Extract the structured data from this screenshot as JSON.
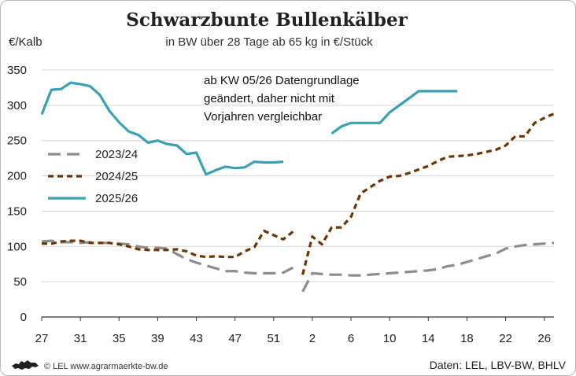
{
  "chart_data": {
    "type": "line",
    "title": "Schwarzbunte Bullenkälber",
    "subtitle": "in BW über 28 Tage ab 65 kg in €/Stück",
    "ylabel": "€/Kalb",
    "ylim": [
      0,
      350
    ],
    "yticks": [
      0,
      50,
      100,
      150,
      200,
      250,
      300,
      350
    ],
    "xticks": [
      "27",
      "31",
      "35",
      "39",
      "43",
      "47",
      "51",
      "2",
      "6",
      "10",
      "14",
      "18",
      "22",
      "26"
    ],
    "grid": "horizontal",
    "legend_position": "left-middle",
    "note": [
      "ab KW 05/26 Datengrundlage",
      "geändert, daher nicht mit",
      "Vorjahren vergleichbar"
    ],
    "series": [
      {
        "name": "2023/24",
        "color": "#8c8c8c",
        "dash": "long-dash",
        "segments": [
          [
            [
              27,
              107
            ],
            [
              28,
              108
            ],
            [
              29,
              106
            ],
            [
              30,
              106
            ],
            [
              31,
              105
            ],
            [
              32,
              106
            ],
            [
              33,
              105
            ],
            [
              34,
              105
            ],
            [
              35,
              104
            ],
            [
              36,
              103
            ],
            [
              37,
              100
            ],
            [
              38,
              98
            ],
            [
              39,
              98
            ],
            [
              40,
              97
            ],
            [
              41,
              89
            ],
            [
              42,
              82
            ],
            [
              43,
              77
            ],
            [
              44,
              73
            ],
            [
              45,
              69
            ],
            [
              46,
              65
            ],
            [
              47,
              65
            ],
            [
              48,
              63
            ],
            [
              49,
              62
            ],
            [
              50,
              62
            ],
            [
              51,
              62
            ],
            [
              52,
              63
            ],
            [
              53,
              70
            ]
          ],
          [
            [
              54,
              36
            ],
            [
              55,
              62
            ],
            [
              56,
              61
            ],
            [
              57,
              60
            ],
            [
              58,
              60
            ],
            [
              59,
              59
            ],
            [
              60,
              59
            ],
            [
              61,
              60
            ],
            [
              62,
              61
            ],
            [
              63,
              62
            ],
            [
              64,
              63
            ],
            [
              65,
              64
            ],
            [
              66,
              65
            ],
            [
              67,
              66
            ],
            [
              68,
              68
            ],
            [
              69,
              72
            ],
            [
              70,
              74
            ],
            [
              71,
              78
            ],
            [
              72,
              82
            ],
            [
              73,
              86
            ],
            [
              74,
              90
            ],
            [
              75,
              97
            ],
            [
              76,
              100
            ],
            [
              77,
              102
            ],
            [
              78,
              103
            ],
            [
              79,
              104
            ],
            [
              80,
              105
            ]
          ]
        ]
      },
      {
        "name": "2024/25",
        "color": "#6b3500",
        "dash": "short-dash",
        "segments": [
          [
            [
              27,
              104
            ],
            [
              28,
              104
            ],
            [
              29,
              107
            ],
            [
              30,
              108
            ],
            [
              31,
              108
            ],
            [
              32,
              105
            ],
            [
              33,
              105
            ],
            [
              34,
              105
            ],
            [
              35,
              103
            ],
            [
              36,
              100
            ],
            [
              37,
              96
            ],
            [
              38,
              95
            ],
            [
              39,
              95
            ],
            [
              40,
              95
            ],
            [
              41,
              96
            ],
            [
              42,
              93
            ],
            [
              43,
              87
            ],
            [
              44,
              85
            ],
            [
              45,
              86
            ],
            [
              46,
              85
            ],
            [
              47,
              85
            ],
            [
              48,
              93
            ],
            [
              49,
              99
            ],
            [
              50,
              122
            ],
            [
              51,
              116
            ],
            [
              52,
              110
            ],
            [
              53,
              121
            ]
          ],
          [
            [
              54,
              60
            ],
            [
              55,
              114
            ],
            [
              56,
              103
            ],
            [
              57,
              127
            ],
            [
              58,
              127
            ],
            [
              59,
              142
            ],
            [
              60,
              175
            ],
            [
              61,
              184
            ],
            [
              62,
              193
            ],
            [
              63,
              199
            ],
            [
              64,
              200
            ],
            [
              65,
              204
            ],
            [
              66,
              209
            ],
            [
              67,
              214
            ],
            [
              68,
              221
            ],
            [
              69,
              227
            ],
            [
              70,
              228
            ],
            [
              71,
              229
            ],
            [
              72,
              231
            ],
            [
              73,
              234
            ],
            [
              74,
              237
            ],
            [
              75,
              243
            ],
            [
              76,
              256
            ],
            [
              77,
              256
            ],
            [
              78,
              275
            ],
            [
              79,
              282
            ],
            [
              80,
              288
            ]
          ]
        ]
      },
      {
        "name": "2025/26",
        "color": "#3aa0b4",
        "dash": "solid",
        "segments": [
          [
            [
              27,
              287
            ],
            [
              28,
              322
            ],
            [
              29,
              323
            ],
            [
              30,
              332
            ],
            [
              31,
              330
            ],
            [
              32,
              327
            ],
            [
              33,
              315
            ],
            [
              34,
              292
            ],
            [
              35,
              276
            ],
            [
              36,
              263
            ],
            [
              37,
              258
            ],
            [
              38,
              247
            ],
            [
              39,
              250
            ],
            [
              40,
              245
            ],
            [
              41,
              243
            ],
            [
              42,
              231
            ],
            [
              43,
              233
            ],
            [
              44,
              202
            ],
            [
              45,
              208
            ],
            [
              46,
              213
            ],
            [
              47,
              211
            ],
            [
              48,
              212
            ],
            [
              49,
              220
            ],
            [
              50,
              219
            ],
            [
              51,
              219
            ],
            [
              52,
              220
            ]
          ],
          [
            [
              57,
              260
            ],
            [
              58,
              270
            ],
            [
              59,
              275
            ],
            [
              60,
              275
            ],
            [
              61,
              275
            ],
            [
              62,
              275
            ],
            [
              63,
              290
            ],
            [
              64,
              300
            ],
            [
              65,
              310
            ],
            [
              66,
              320
            ],
            [
              67,
              320
            ],
            [
              68,
              320
            ],
            [
              69,
              320
            ],
            [
              70,
              320
            ]
          ]
        ]
      }
    ]
  },
  "footer": {
    "logo_icon": "lion-coat-of-arms-icon",
    "copyright": "© LEL www.agrarmaerkte-bw.de",
    "source": "Daten: LEL, LBV-BW, BHLV"
  }
}
